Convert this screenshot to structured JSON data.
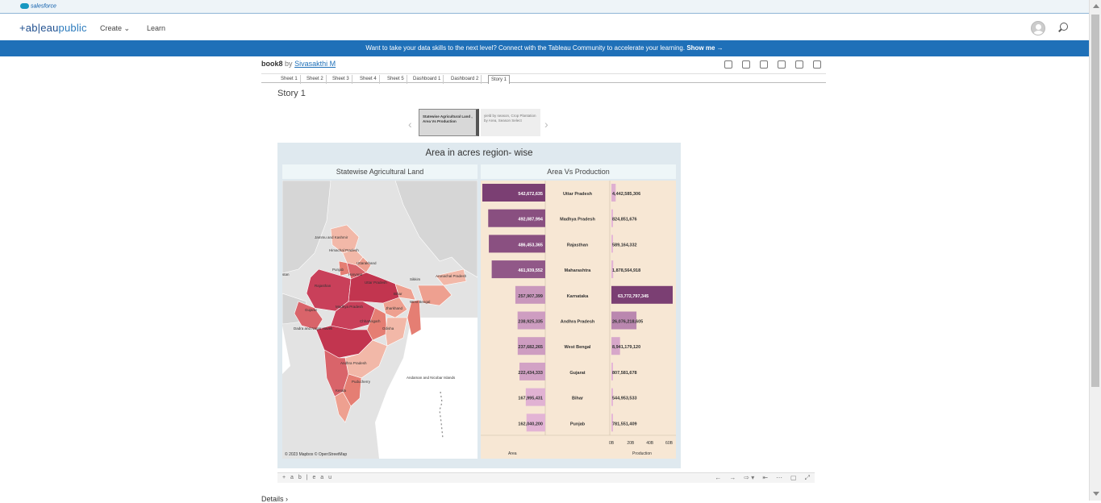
{
  "salesforce": {
    "label": "salesforce"
  },
  "header": {
    "logo_main": "+ab|eau",
    "logo_sub": "public",
    "nav": [
      {
        "label": "Create"
      },
      {
        "label": "Learn"
      }
    ]
  },
  "banner": {
    "text": "Want to take your data skills to the next level? Connect with the Tableau Community to accelerate your learning.",
    "cta": "Show me →"
  },
  "viz": {
    "book": "book8",
    "by": "by",
    "author": "Sivasakthi M"
  },
  "tabs": [
    {
      "label": "Sheet 1"
    },
    {
      "label": "Sheet 2"
    },
    {
      "label": "Sheet 3"
    },
    {
      "label": "Sheet 4"
    },
    {
      "label": "Sheet 5"
    },
    {
      "label": "Dashboard 1"
    },
    {
      "label": "Dashboard 2"
    },
    {
      "label": "Story 1"
    }
  ],
  "story": {
    "title": "Story 1",
    "points": [
      {
        "text": "Statewise Agricultural Land , Area Vs Production"
      },
      {
        "text": "yield by season, Crop Plantation by Area, Season Select"
      }
    ]
  },
  "dashboard": {
    "title": "Area in acres region- wise",
    "map_header": "Statewise Agricultural Land",
    "bar_header": "Area Vs Production",
    "map_credit": "© 2023 Mapbox © OpenStreetMap",
    "map_labels": [
      "Jammu and Kashmir",
      "Himachal Pradesh",
      "Punjab",
      "Uttarakhand",
      "Haryana",
      "Rajasthan",
      "Uttar Pradesh",
      "Bihar",
      "Sikkim",
      "Arunachal Pradesh",
      "West Bengal",
      "Gujarat",
      "Madhya Pradesh",
      "Jharkhand",
      "Dadra and Nagar Haveli",
      "Chhattisgarh",
      "Odisha",
      "Andhra Pradesh",
      "Puducherry",
      "Kerala",
      "Andaman and Nicobar Islands",
      "stan"
    ]
  },
  "chart_data": {
    "type": "bar",
    "categories": [
      "Uttar Pradesh",
      "Madhya Pradesh",
      "Rajasthan",
      "Maharashtra",
      "Karnataka",
      "Andhra Pradesh",
      "West Bengal",
      "Gujarat",
      "Bihar",
      "Punjab"
    ],
    "series": [
      {
        "name": "Area",
        "values": [
          542672635,
          492087994,
          486453365,
          461939552,
          257907399,
          238925335,
          237682265,
          222434333,
          167995431,
          162040200
        ],
        "labels": [
          "542,672,635",
          "492,087,994",
          "486,453,365",
          "461,939,552",
          "257,907,399",
          "238,925,335",
          "237,682,265",
          "222,434,333",
          "167,995,431",
          "162,040,200"
        ]
      },
      {
        "name": "Production",
        "values": [
          4442585306,
          824851676,
          589164332,
          1878564918,
          63772797345,
          26076218605,
          8941179120,
          807581678,
          544953533,
          781551409
        ],
        "labels": [
          "4,442,585,306",
          "824,851,676",
          "589,164,332",
          "1,878,564,918",
          "63,772,797,345",
          "26,076,218,605",
          "8,941,179,120",
          "807,581,678",
          "544,953,533",
          "781,551,409"
        ]
      }
    ],
    "production_ticks": [
      "0B",
      "20B",
      "40B",
      "60B"
    ],
    "xlabel_area": "Area",
    "xlabel_production": "Production",
    "colors": {
      "high": "#7b3f73",
      "low": "#e6b8d8"
    }
  },
  "bottom": {
    "brand": "+ a b | e a u",
    "controls": [
      "←",
      "→",
      "⇨ ▾",
      "⇤",
      "⋯",
      "▢",
      "⤢"
    ]
  },
  "details": {
    "label": "Details"
  }
}
